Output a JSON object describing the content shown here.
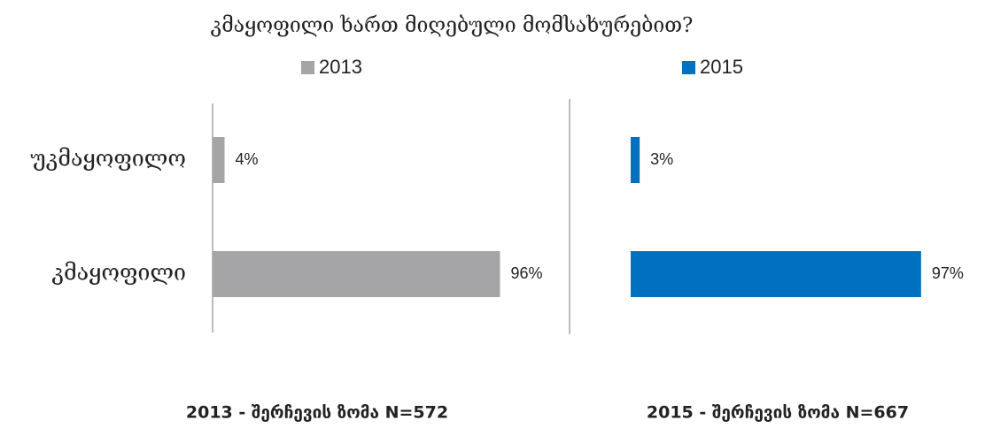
{
  "title": "კმაყოფილი ხართ მიღებული მომსახურებით?",
  "chart_data": [
    {
      "type": "bar",
      "orientation": "horizontal",
      "categories": [
        "უკმაყოფილო",
        "კმაყოფილი"
      ],
      "series": [
        {
          "name": "2013",
          "color": "#a5a5a7",
          "values": [
            4,
            96
          ],
          "value_labels": [
            "4%",
            "96%"
          ]
        }
      ],
      "xlim": [
        0,
        100
      ],
      "caption": "2013 - შერჩევის ზომა N=572"
    },
    {
      "type": "bar",
      "orientation": "horizontal",
      "series": [
        {
          "name": "2015",
          "color": "#0070c0",
          "values": [
            3,
            97
          ],
          "value_labels": [
            "3%",
            "97%"
          ]
        }
      ],
      "xlim": [
        0,
        100
      ],
      "caption": "2015 - შერჩევის ზომა N=667"
    }
  ]
}
